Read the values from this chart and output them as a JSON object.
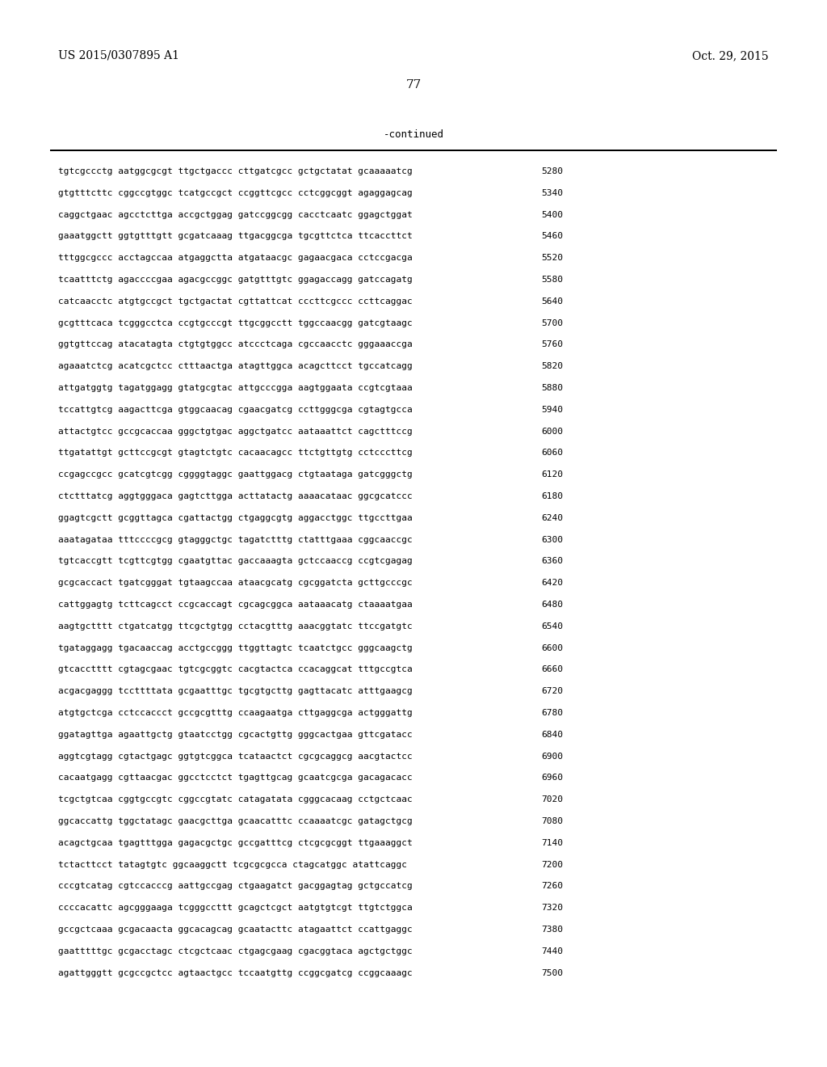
{
  "header_left": "US 2015/0307895 A1",
  "header_right": "Oct. 29, 2015",
  "page_number": "77",
  "continued_label": "-continued",
  "background_color": "#ffffff",
  "text_color": "#000000",
  "sequence_lines": [
    [
      "tgtcgccctg",
      "aatggcgcgt",
      "ttgctgaccc",
      "cttgatcgcc",
      "gctgctatat",
      "gcaaaaatcg",
      "5280"
    ],
    [
      "gtgtttcttc",
      "cggccgtggc",
      "tcatgccgct",
      "ccggttcgcc",
      "cctcggcggt",
      "agaggagcag",
      "5340"
    ],
    [
      "caggctgaac",
      "agcctcttga",
      "accgctggag",
      "gatccggcgg",
      "cacctcaatc",
      "ggagctggat",
      "5400"
    ],
    [
      "gaaatggctt",
      "ggtgtttgtt",
      "gcgatcaaag",
      "ttgacggcga",
      "tgcgttctca",
      "ttcaccttct",
      "5460"
    ],
    [
      "tttggcgccc",
      "acctagccaa",
      "atgaggctta",
      "atgataacgc",
      "gagaacgaca",
      "cctccgacga",
      "5520"
    ],
    [
      "tcaatttctg",
      "agaccccgaa",
      "agacgccggc",
      "gatgtttgtc",
      "ggagaccagg",
      "gatccagatg",
      "5580"
    ],
    [
      "catcaacctc",
      "atgtgccgct",
      "tgctgactat",
      "cgttattcat",
      "cccttcgccc",
      "ccttcaggac",
      "5640"
    ],
    [
      "gcgtttcaca",
      "tcgggcctca",
      "ccgtgcccgt",
      "ttgcggcctt",
      "tggccaacgg",
      "gatcgtaagc",
      "5700"
    ],
    [
      "ggtgttccag",
      "atacatagta",
      "ctgtgtggcc",
      "atccctcaga",
      "cgccaacctc",
      "gggaaaccga",
      "5760"
    ],
    [
      "agaaatctcg",
      "acatcgctcc",
      "ctttaactga",
      "atagttggca",
      "acagcttcct",
      "tgccatcagg",
      "5820"
    ],
    [
      "attgatggtg",
      "tagatggagg",
      "gtatgcgtac",
      "attgcccgga",
      "aagtggaata",
      "ccgtcgtaaa",
      "5880"
    ],
    [
      "tccattgtcg",
      "aagacttcga",
      "gtggcaacag",
      "cgaacgatcg",
      "ccttgggcga",
      "cgtagtgcca",
      "5940"
    ],
    [
      "attactgtcc",
      "gccgcaccaa",
      "gggctgtgac",
      "aggctgatcc",
      "aataaattct",
      "cagctttccg",
      "6000"
    ],
    [
      "ttgatattgt",
      "gcttccgcgt",
      "gtagtctgtc",
      "cacaacagcc",
      "ttctgttgtg",
      "cctcccttcg",
      "6060"
    ],
    [
      "ccgagccgcc",
      "gcatcgtcgg",
      "cggggtaggc",
      "gaattggacg",
      "ctgtaataga",
      "gatcgggctg",
      "6120"
    ],
    [
      "ctctttatcg",
      "aggtgggaca",
      "gagtcttgga",
      "acttatactg",
      "aaaacataac",
      "ggcgcatccc",
      "6180"
    ],
    [
      "ggagtcgctt",
      "gcggttagca",
      "cgattactgg",
      "ctgaggcgtg",
      "aggacctggc",
      "ttgccttgaa",
      "6240"
    ],
    [
      "aaatagataa",
      "tttccccgcg",
      "gtagggctgc",
      "tagatctttg",
      "ctatttgaaa",
      "cggcaaccgc",
      "6300"
    ],
    [
      "tgtcaccgtt",
      "tcgttcgtgg",
      "cgaatgttac",
      "gaccaaagta",
      "gctccaaccg",
      "ccgtcgagag",
      "6360"
    ],
    [
      "gcgcaccact",
      "tgatcgggat",
      "tgtaagccaa",
      "ataacgcatg",
      "cgcggatcta",
      "gcttgcccgc",
      "6420"
    ],
    [
      "cattggagtg",
      "tcttcagcct",
      "ccgcaccagt",
      "cgcagcggca",
      "aataaacatg",
      "ctaaaatgaa",
      "6480"
    ],
    [
      "aagtgctttt",
      "ctgatcatgg",
      "ttcgctgtgg",
      "cctacgtttg",
      "aaacggtatc",
      "ttccgatgtc",
      "6540"
    ],
    [
      "tgataggagg",
      "tgacaaccag",
      "acctgccggg",
      "ttggttagtc",
      "tcaatctgcc",
      "gggcaagctg",
      "6600"
    ],
    [
      "gtcacctttt",
      "cgtagcgaac",
      "tgtcgcggtc",
      "cacgtactca",
      "ccacaggcat",
      "tttgccgtca",
      "6660"
    ],
    [
      "acgacgaggg",
      "tccttttatа",
      "gcgaatttgc",
      "tgcgtgcttg",
      "gagttacatc",
      "atttgaagcg",
      "6720"
    ],
    [
      "atgtgctcga",
      "cctccaccct",
      "gccgcgtttg",
      "ccaagaatga",
      "cttgaggcga",
      "actgggattg",
      "6780"
    ],
    [
      "ggatagttga",
      "agaattgctg",
      "gtaatcctgg",
      "cgcactgttg",
      "gggcactgaa",
      "gttcgatacc",
      "6840"
    ],
    [
      "aggtcgtagg",
      "cgtactgagc",
      "ggtgtcggca",
      "tcataactct",
      "cgcgcaggcg",
      "aacgtactcc",
      "6900"
    ],
    [
      "cacaatgagg",
      "cgttaacgac",
      "ggcctcctct",
      "tgagttgcag",
      "gcaatcgcga",
      "gacagacacc",
      "6960"
    ],
    [
      "tcgctgtcaa",
      "cggtgccgtc",
      "cggccgtatc",
      "catagatata",
      "cgggcacaag",
      "cctgctcaac",
      "7020"
    ],
    [
      "ggcaccattg",
      "tggctatagc",
      "gaacgcttga",
      "gcaacatttc",
      "ccaaaatcgc",
      "gatagctgcg",
      "7080"
    ],
    [
      "acagctgcaa",
      "tgagtttgga",
      "gagacgctgc",
      "gccgatttcg",
      "ctcgcgcggt",
      "ttgaaaggct",
      "7140"
    ],
    [
      "tctacttcct",
      "tatagtgtc",
      "ggcaaggctt",
      "tcgcgcgcca",
      "ctagcatggc",
      "atattcaggc",
      "7200"
    ],
    [
      "cccgtcatag",
      "cgtccacccg",
      "aattgccgag",
      "ctgaagatct",
      "gacggagtag",
      "gctgccatcg",
      "7260"
    ],
    [
      "ccccacattc",
      "agcgggaaga",
      "tcgggccttt",
      "gcagctcgct",
      "aatgtgtcgt",
      "ttgtctggca",
      "7320"
    ],
    [
      "gccgctcaaa",
      "gcgacaacta",
      "ggcacagcag",
      "gcaatacttc",
      "atagaattct",
      "ccattgaggc",
      "7380"
    ],
    [
      "gaatttttgc",
      "gcgacctagc",
      "ctcgctcaac",
      "ctgagcgaag",
      "cgacggtaca",
      "agctgctggc",
      "7440"
    ],
    [
      "agattgggtt",
      "gcgccgctcc",
      "agtaactgcc",
      "tccaatgttg",
      "ccggcgatcg",
      "ccggcaaagc",
      "7500"
    ]
  ]
}
